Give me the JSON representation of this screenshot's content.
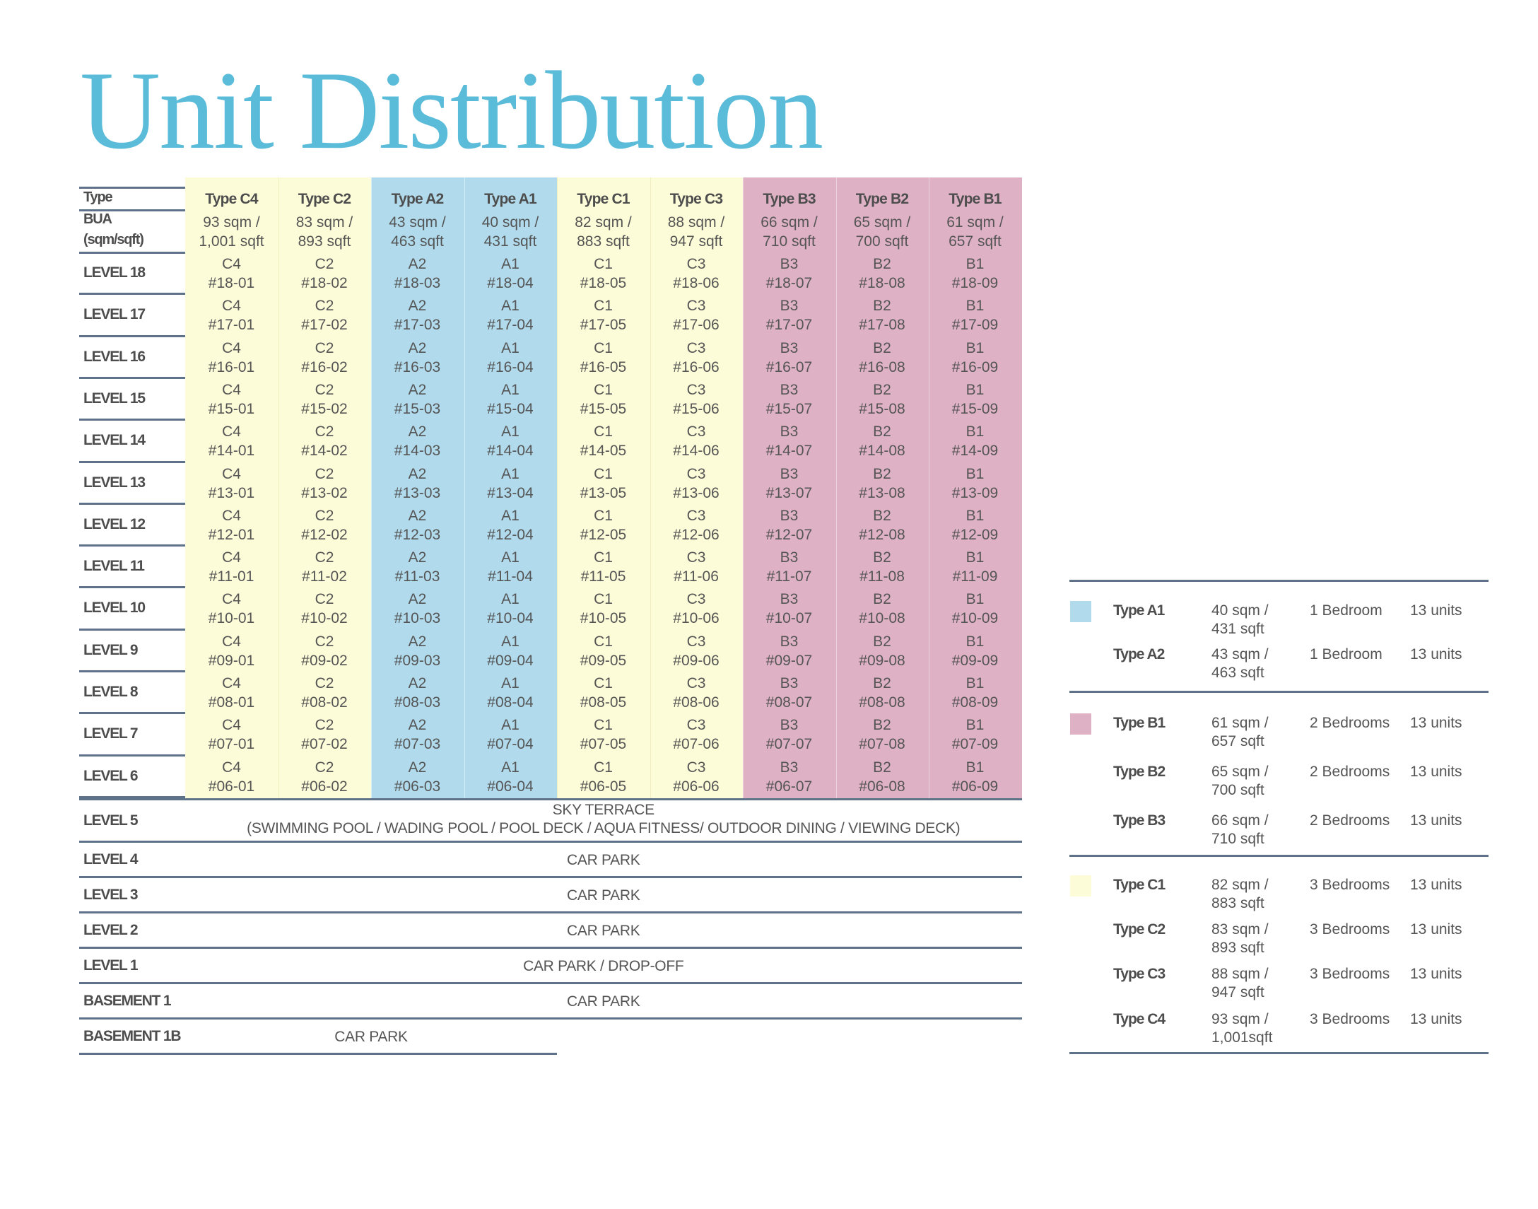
{
  "title": "Unit Distribution",
  "table": {
    "type_label": "Type",
    "bua_label_1": "BUA",
    "bua_label_2": "(sqm/sqft)",
    "columns": [
      {
        "type": "Type C4",
        "sqm": "93 sqm /",
        "sqft": "1,001 sqft",
        "code": "C4",
        "group": "c"
      },
      {
        "type": "Type C2",
        "sqm": "83 sqm /",
        "sqft": "893 sqft",
        "code": "C2",
        "group": "c"
      },
      {
        "type": "Type A2",
        "sqm": "43 sqm /",
        "sqft": "463 sqft",
        "code": "A2",
        "group": "a"
      },
      {
        "type": "Type A1",
        "sqm": "40 sqm /",
        "sqft": "431 sqft",
        "code": "A1",
        "group": "a"
      },
      {
        "type": "Type C1",
        "sqm": "82 sqm /",
        "sqft": "883 sqft",
        "code": "C1",
        "group": "c"
      },
      {
        "type": "Type C3",
        "sqm": "88 sqm /",
        "sqft": "947 sqft",
        "code": "C3",
        "group": "c"
      },
      {
        "type": "Type B3",
        "sqm": "66 sqm /",
        "sqft": "710 sqft",
        "code": "B3",
        "group": "b"
      },
      {
        "type": "Type B2",
        "sqm": "65 sqm /",
        "sqft": "700 sqft",
        "code": "B2",
        "group": "b"
      },
      {
        "type": "Type B1",
        "sqm": "61 sqm /",
        "sqft": "657 sqft",
        "code": "B1",
        "group": "b"
      }
    ],
    "unit_levels": [
      {
        "label": "LEVEL 18",
        "units": [
          "#18-01",
          "#18-02",
          "#18-03",
          "#18-04",
          "#18-05",
          "#18-06",
          "#18-07",
          "#18-08",
          "#18-09"
        ]
      },
      {
        "label": "LEVEL 17",
        "units": [
          "#17-01",
          "#17-02",
          "#17-03",
          "#17-04",
          "#17-05",
          "#17-06",
          "#17-07",
          "#17-08",
          "#17-09"
        ]
      },
      {
        "label": "LEVEL 16",
        "units": [
          "#16-01",
          "#16-02",
          "#16-03",
          "#16-04",
          "#16-05",
          "#16-06",
          "#16-07",
          "#16-08",
          "#16-09"
        ]
      },
      {
        "label": "LEVEL 15",
        "units": [
          "#15-01",
          "#15-02",
          "#15-03",
          "#15-04",
          "#15-05",
          "#15-06",
          "#15-07",
          "#15-08",
          "#15-09"
        ]
      },
      {
        "label": "LEVEL 14",
        "units": [
          "#14-01",
          "#14-02",
          "#14-03",
          "#14-04",
          "#14-05",
          "#14-06",
          "#14-07",
          "#14-08",
          "#14-09"
        ]
      },
      {
        "label": "LEVEL 13",
        "units": [
          "#13-01",
          "#13-02",
          "#13-03",
          "#13-04",
          "#13-05",
          "#13-06",
          "#13-07",
          "#13-08",
          "#13-09"
        ]
      },
      {
        "label": "LEVEL 12",
        "units": [
          "#12-01",
          "#12-02",
          "#12-03",
          "#12-04",
          "#12-05",
          "#12-06",
          "#12-07",
          "#12-08",
          "#12-09"
        ]
      },
      {
        "label": "LEVEL 11",
        "units": [
          "#11-01",
          "#11-02",
          "#11-03",
          "#11-04",
          "#11-05",
          "#11-06",
          "#11-07",
          "#11-08",
          "#11-09"
        ]
      },
      {
        "label": "LEVEL 10",
        "units": [
          "#10-01",
          "#10-02",
          "#10-03",
          "#10-04",
          "#10-05",
          "#10-06",
          "#10-07",
          "#10-08",
          "#10-09"
        ]
      },
      {
        "label": "LEVEL 9",
        "units": [
          "#09-01",
          "#09-02",
          "#09-03",
          "#09-04",
          "#09-05",
          "#09-06",
          "#09-07",
          "#09-08",
          "#09-09"
        ]
      },
      {
        "label": "LEVEL 8",
        "units": [
          "#08-01",
          "#08-02",
          "#08-03",
          "#08-04",
          "#08-05",
          "#08-06",
          "#08-07",
          "#08-08",
          "#08-09"
        ]
      },
      {
        "label": "LEVEL 7",
        "units": [
          "#07-01",
          "#07-02",
          "#07-03",
          "#07-04",
          "#07-05",
          "#07-06",
          "#07-07",
          "#07-08",
          "#07-09"
        ]
      },
      {
        "label": "LEVEL 6",
        "units": [
          "#06-01",
          "#06-02",
          "#06-03",
          "#06-04",
          "#06-05",
          "#06-06",
          "#06-07",
          "#06-08",
          "#06-09"
        ]
      }
    ],
    "facility_levels": [
      {
        "label": "LEVEL 5",
        "line1": "SKY TERRACE",
        "line2": "(SWIMMING POOL / WADING POOL / POOL DECK / AQUA FITNESS/ OUTDOOR DINING / VIEWING DECK)"
      },
      {
        "label": "LEVEL 4",
        "line1": "CAR PARK"
      },
      {
        "label": "LEVEL 3",
        "line1": "CAR PARK"
      },
      {
        "label": "LEVEL 2",
        "line1": "CAR PARK"
      },
      {
        "label": "LEVEL 1",
        "line1": "CAR PARK / DROP-OFF"
      },
      {
        "label": "BASEMENT 1",
        "line1": "CAR PARK"
      },
      {
        "label": "BASEMENT 1B",
        "line1": "CAR PARK"
      }
    ]
  },
  "legend": {
    "groups": [
      {
        "color": "#b1dbec",
        "items": [
          {
            "type": "Type A1",
            "sqm": "40 sqm /",
            "sqft": "431 sqft",
            "bedrooms": "1 Bedroom",
            "units": "13 units"
          },
          {
            "type": "Type A2",
            "sqm": "43 sqm /",
            "sqft": "463 sqft",
            "bedrooms": "1 Bedroom",
            "units": "13 units"
          }
        ]
      },
      {
        "color": "#deb1c5",
        "items": [
          {
            "type": "Type B1",
            "sqm": "61 sqm /",
            "sqft": "657 sqft",
            "bedrooms": "2 Bedrooms",
            "units": "13 units"
          },
          {
            "type": "Type B2",
            "sqm": "65 sqm /",
            "sqft": "700 sqft",
            "bedrooms": "2 Bedrooms",
            "units": "13 units"
          },
          {
            "type": "Type B3",
            "sqm": "66 sqm /",
            "sqft": "710 sqft",
            "bedrooms": "2 Bedrooms",
            "units": "13 units"
          }
        ]
      },
      {
        "color": "#fdfcd8",
        "items": [
          {
            "type": "Type C1",
            "sqm": "82 sqm /",
            "sqft": "883 sqft",
            "bedrooms": "3 Bedrooms",
            "units": "13 units"
          },
          {
            "type": "Type C2",
            "sqm": "83 sqm /",
            "sqft": "893 sqft",
            "bedrooms": "3 Bedrooms",
            "units": "13 units"
          },
          {
            "type": "Type C3",
            "sqm": "88 sqm /",
            "sqft": "947 sqft",
            "bedrooms": "3 Bedrooms",
            "units": "13 units"
          },
          {
            "type": "Type C4",
            "sqm": "93 sqm /",
            "sqft": "1,001sqft",
            "bedrooms": "3 Bedrooms",
            "units": "13 units"
          }
        ]
      }
    ]
  }
}
